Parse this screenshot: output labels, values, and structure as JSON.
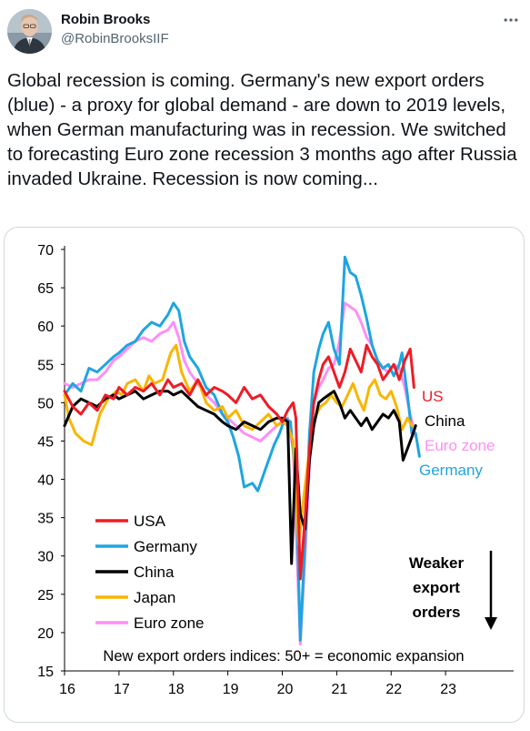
{
  "author": {
    "name": "Robin Brooks",
    "handle": "@RobinBrooksIIF"
  },
  "tweet": {
    "text": "Global recession is coming. Germany's new export orders (blue) - a proxy for global demand - are down to 2019 levels, when German manufacturing was in recession. We switched to forecasting Euro zone recession 3 months ago after Russia invaded Ukraine. Recession is now coming..."
  },
  "icons": {
    "more": "more-horizontal-icon",
    "avatar": "avatar-photo"
  },
  "chart_data": {
    "type": "line",
    "xlim": [
      2016,
      2024
    ],
    "ylim": [
      15,
      70
    ],
    "x_ticks": [
      16,
      17,
      18,
      19,
      20,
      21,
      22,
      23
    ],
    "y_ticks": [
      15,
      20,
      25,
      30,
      35,
      40,
      45,
      50,
      55,
      60,
      65,
      70
    ],
    "grid": false,
    "legend_position": "bottom-left",
    "annotation": "New export orders indices: 50+ = economic expansion",
    "side_note": [
      "Weaker",
      "export",
      "orders"
    ],
    "series": [
      {
        "name": "USA",
        "color": "#ee1c25",
        "label": "US",
        "points": [
          [
            2016.0,
            51.5
          ],
          [
            2016.15,
            49.5
          ],
          [
            2016.3,
            48.5
          ],
          [
            2016.45,
            50
          ],
          [
            2016.6,
            49
          ],
          [
            2016.75,
            51
          ],
          [
            2016.9,
            50.5
          ],
          [
            2017.0,
            52
          ],
          [
            2017.15,
            51
          ],
          [
            2017.3,
            52
          ],
          [
            2017.45,
            51.5
          ],
          [
            2017.6,
            52.5
          ],
          [
            2017.75,
            51
          ],
          [
            2017.9,
            53
          ],
          [
            2018.0,
            52
          ],
          [
            2018.15,
            52.5
          ],
          [
            2018.3,
            51
          ],
          [
            2018.45,
            53
          ],
          [
            2018.6,
            51
          ],
          [
            2018.75,
            52
          ],
          [
            2018.9,
            51.5
          ],
          [
            2019.0,
            51
          ],
          [
            2019.15,
            50
          ],
          [
            2019.3,
            52
          ],
          [
            2019.45,
            50.5
          ],
          [
            2019.6,
            51
          ],
          [
            2019.75,
            49.5
          ],
          [
            2019.9,
            48.5
          ],
          [
            2020.0,
            47.5
          ],
          [
            2020.1,
            49
          ],
          [
            2020.2,
            50
          ],
          [
            2020.25,
            48
          ],
          [
            2020.33,
            27
          ],
          [
            2020.42,
            35
          ],
          [
            2020.5,
            44
          ],
          [
            2020.58,
            50
          ],
          [
            2020.67,
            53
          ],
          [
            2020.75,
            55
          ],
          [
            2020.85,
            56
          ],
          [
            2020.95,
            54
          ],
          [
            2021.05,
            52
          ],
          [
            2021.15,
            54
          ],
          [
            2021.25,
            57
          ],
          [
            2021.35,
            55.5
          ],
          [
            2021.45,
            54
          ],
          [
            2021.55,
            57.5
          ],
          [
            2021.65,
            56
          ],
          [
            2021.75,
            55
          ],
          [
            2021.85,
            53
          ],
          [
            2021.95,
            54
          ],
          [
            2022.05,
            55
          ],
          [
            2022.15,
            53
          ],
          [
            2022.25,
            55.5
          ],
          [
            2022.35,
            57
          ],
          [
            2022.42,
            52
          ]
        ]
      },
      {
        "name": "Germany",
        "color": "#1ea5e1",
        "label": "Germany",
        "points": [
          [
            2016.0,
            51
          ],
          [
            2016.15,
            52.5
          ],
          [
            2016.3,
            51.5
          ],
          [
            2016.45,
            54.5
          ],
          [
            2016.6,
            54
          ],
          [
            2016.75,
            55
          ],
          [
            2016.9,
            56
          ],
          [
            2017.0,
            56.5
          ],
          [
            2017.15,
            57.5
          ],
          [
            2017.3,
            58
          ],
          [
            2017.45,
            59.5
          ],
          [
            2017.6,
            60.5
          ],
          [
            2017.75,
            60
          ],
          [
            2017.9,
            61.5
          ],
          [
            2018.0,
            63
          ],
          [
            2018.1,
            62
          ],
          [
            2018.2,
            58
          ],
          [
            2018.3,
            56
          ],
          [
            2018.45,
            54.5
          ],
          [
            2018.6,
            52
          ],
          [
            2018.75,
            51
          ],
          [
            2018.9,
            48.5
          ],
          [
            2019.0,
            47.5
          ],
          [
            2019.1,
            45.5
          ],
          [
            2019.2,
            43
          ],
          [
            2019.3,
            39
          ],
          [
            2019.45,
            39.5
          ],
          [
            2019.55,
            38.5
          ],
          [
            2019.7,
            41.5
          ],
          [
            2019.85,
            44.5
          ],
          [
            2019.95,
            46
          ],
          [
            2020.05,
            48
          ],
          [
            2020.15,
            47.5
          ],
          [
            2020.25,
            40
          ],
          [
            2020.33,
            19
          ],
          [
            2020.42,
            32
          ],
          [
            2020.5,
            46
          ],
          [
            2020.58,
            54
          ],
          [
            2020.67,
            57
          ],
          [
            2020.75,
            59
          ],
          [
            2020.85,
            60.5
          ],
          [
            2020.95,
            57
          ],
          [
            2021.05,
            55
          ],
          [
            2021.15,
            69
          ],
          [
            2021.25,
            67
          ],
          [
            2021.35,
            66.5
          ],
          [
            2021.45,
            64
          ],
          [
            2021.55,
            61
          ],
          [
            2021.65,
            57.5
          ],
          [
            2021.75,
            55.5
          ],
          [
            2021.85,
            54.5
          ],
          [
            2021.95,
            55
          ],
          [
            2022.05,
            53.5
          ],
          [
            2022.15,
            55
          ],
          [
            2022.2,
            56.5
          ],
          [
            2022.3,
            51
          ],
          [
            2022.38,
            46
          ],
          [
            2022.45,
            46
          ],
          [
            2022.52,
            43
          ]
        ]
      },
      {
        "name": "China",
        "color": "#000000",
        "label": "China",
        "points": [
          [
            2016.0,
            47
          ],
          [
            2016.15,
            49.5
          ],
          [
            2016.3,
            50.5
          ],
          [
            2016.45,
            50
          ],
          [
            2016.6,
            49.5
          ],
          [
            2016.75,
            50.5
          ],
          [
            2016.9,
            51
          ],
          [
            2017.0,
            50.5
          ],
          [
            2017.15,
            51
          ],
          [
            2017.3,
            51.5
          ],
          [
            2017.45,
            50.5
          ],
          [
            2017.6,
            51
          ],
          [
            2017.75,
            51.5
          ],
          [
            2017.9,
            51.5
          ],
          [
            2018.0,
            51
          ],
          [
            2018.15,
            51.5
          ],
          [
            2018.3,
            50.5
          ],
          [
            2018.45,
            49.5
          ],
          [
            2018.6,
            49
          ],
          [
            2018.75,
            48.5
          ],
          [
            2018.9,
            47.5
          ],
          [
            2019.0,
            47
          ],
          [
            2019.15,
            46.5
          ],
          [
            2019.3,
            47.5
          ],
          [
            2019.45,
            47
          ],
          [
            2019.6,
            46.5
          ],
          [
            2019.75,
            47.5
          ],
          [
            2019.9,
            48
          ],
          [
            2020.0,
            48
          ],
          [
            2020.1,
            47.5
          ],
          [
            2020.17,
            29
          ],
          [
            2020.25,
            44
          ],
          [
            2020.33,
            35.5
          ],
          [
            2020.42,
            33.5
          ],
          [
            2020.5,
            42.5
          ],
          [
            2020.58,
            47
          ],
          [
            2020.67,
            50
          ],
          [
            2020.75,
            50.5
          ],
          [
            2020.85,
            51
          ],
          [
            2020.95,
            51.5
          ],
          [
            2021.05,
            50
          ],
          [
            2021.15,
            48
          ],
          [
            2021.25,
            49
          ],
          [
            2021.35,
            48
          ],
          [
            2021.45,
            47
          ],
          [
            2021.55,
            48
          ],
          [
            2021.65,
            46.5
          ],
          [
            2021.75,
            47.5
          ],
          [
            2021.85,
            48.5
          ],
          [
            2021.95,
            48
          ],
          [
            2022.05,
            49
          ],
          [
            2022.15,
            47.5
          ],
          [
            2022.22,
            42.5
          ],
          [
            2022.3,
            44
          ],
          [
            2022.38,
            45.5
          ],
          [
            2022.45,
            47
          ]
        ]
      },
      {
        "name": "Japan",
        "color": "#fab500",
        "label": "",
        "points": [
          [
            2016.0,
            51
          ],
          [
            2016.08,
            48
          ],
          [
            2016.2,
            46
          ],
          [
            2016.35,
            45
          ],
          [
            2016.5,
            44.5
          ],
          [
            2016.65,
            48.5
          ],
          [
            2016.8,
            50.5
          ],
          [
            2016.95,
            51.5
          ],
          [
            2017.05,
            51
          ],
          [
            2017.15,
            52.5
          ],
          [
            2017.3,
            53
          ],
          [
            2017.45,
            51.5
          ],
          [
            2017.55,
            53.5
          ],
          [
            2017.65,
            52.5
          ],
          [
            2017.8,
            53
          ],
          [
            2017.95,
            56.5
          ],
          [
            2018.05,
            57.5
          ],
          [
            2018.15,
            54
          ],
          [
            2018.3,
            51.5
          ],
          [
            2018.45,
            53
          ],
          [
            2018.6,
            50
          ],
          [
            2018.75,
            49
          ],
          [
            2018.9,
            49.5
          ],
          [
            2019.0,
            48
          ],
          [
            2019.15,
            49
          ],
          [
            2019.3,
            47
          ],
          [
            2019.45,
            46.5
          ],
          [
            2019.6,
            47.5
          ],
          [
            2019.75,
            48.5
          ],
          [
            2019.9,
            47
          ],
          [
            2020.0,
            47.5
          ],
          [
            2020.1,
            47
          ],
          [
            2020.2,
            45
          ],
          [
            2020.3,
            31.5
          ],
          [
            2020.4,
            38
          ],
          [
            2020.5,
            44
          ],
          [
            2020.6,
            48
          ],
          [
            2020.7,
            49.5
          ],
          [
            2020.8,
            50
          ],
          [
            2020.9,
            51
          ],
          [
            2021.0,
            50
          ],
          [
            2021.1,
            49.5
          ],
          [
            2021.2,
            51
          ],
          [
            2021.3,
            52.5
          ],
          [
            2021.4,
            50.5
          ],
          [
            2021.5,
            49
          ],
          [
            2021.6,
            52
          ],
          [
            2021.7,
            53
          ],
          [
            2021.8,
            51
          ],
          [
            2021.9,
            50.5
          ],
          [
            2022.0,
            51.5
          ],
          [
            2022.1,
            49.5
          ],
          [
            2022.2,
            46.5
          ],
          [
            2022.3,
            48
          ],
          [
            2022.38,
            47
          ]
        ]
      },
      {
        "name": "Euro zone",
        "color": "#ff8ff6",
        "label": "Euro zone",
        "points": [
          [
            2016.0,
            52.5
          ],
          [
            2016.15,
            52
          ],
          [
            2016.3,
            52.5
          ],
          [
            2016.45,
            53
          ],
          [
            2016.6,
            53
          ],
          [
            2016.75,
            54
          ],
          [
            2016.9,
            55.5
          ],
          [
            2017.0,
            56
          ],
          [
            2017.15,
            57
          ],
          [
            2017.3,
            58
          ],
          [
            2017.45,
            58.5
          ],
          [
            2017.6,
            58
          ],
          [
            2017.75,
            59
          ],
          [
            2017.9,
            59.5
          ],
          [
            2018.0,
            60.5
          ],
          [
            2018.1,
            58.5
          ],
          [
            2018.2,
            55.5
          ],
          [
            2018.3,
            54
          ],
          [
            2018.45,
            52.5
          ],
          [
            2018.6,
            51
          ],
          [
            2018.75,
            50
          ],
          [
            2018.9,
            48.5
          ],
          [
            2019.0,
            48
          ],
          [
            2019.15,
            47
          ],
          [
            2019.3,
            46
          ],
          [
            2019.45,
            45.5
          ],
          [
            2019.6,
            45
          ],
          [
            2019.75,
            46
          ],
          [
            2019.9,
            47
          ],
          [
            2020.0,
            47.5
          ],
          [
            2020.1,
            48
          ],
          [
            2020.2,
            44
          ],
          [
            2020.33,
            18.5
          ],
          [
            2020.42,
            30
          ],
          [
            2020.5,
            42
          ],
          [
            2020.58,
            50
          ],
          [
            2020.67,
            52
          ],
          [
            2020.75,
            53
          ],
          [
            2020.85,
            54.5
          ],
          [
            2020.95,
            55
          ],
          [
            2021.05,
            58
          ],
          [
            2021.15,
            63
          ],
          [
            2021.25,
            62.5
          ],
          [
            2021.35,
            62
          ],
          [
            2021.45,
            60.5
          ],
          [
            2021.55,
            58.5
          ],
          [
            2021.65,
            57.5
          ],
          [
            2021.75,
            55.5
          ],
          [
            2021.85,
            54.5
          ],
          [
            2021.95,
            54
          ],
          [
            2022.05,
            55
          ],
          [
            2022.15,
            54.5
          ],
          [
            2022.25,
            52
          ],
          [
            2022.35,
            48.5
          ],
          [
            2022.45,
            45.5
          ]
        ]
      }
    ]
  }
}
